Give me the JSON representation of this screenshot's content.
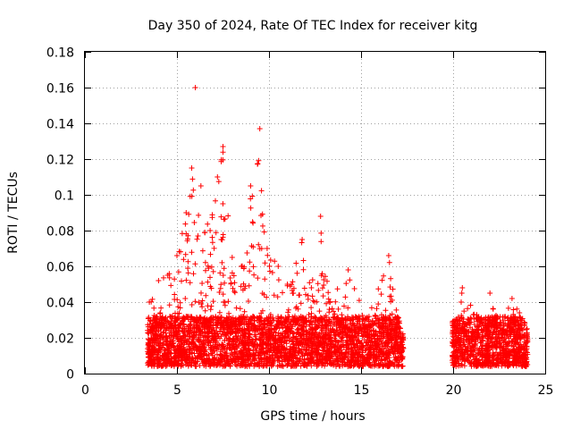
{
  "chart_data": {
    "type": "scatter",
    "title": "Day 350 of 2024, Rate Of TEC Index for receiver kitg",
    "xlabel": "GPS time / hours",
    "ylabel": "ROTI / TECUs",
    "xlim": [
      0,
      25
    ],
    "ylim": [
      0,
      0.18
    ],
    "xticks": [
      "0",
      "5",
      "10",
      "15",
      "20",
      "25"
    ],
    "yticks": [
      "0",
      "0.02",
      "0.04",
      "0.06",
      "0.08",
      "0.1",
      "0.12",
      "0.14",
      "0.16",
      "0.18"
    ],
    "grid": true,
    "marker": "+",
    "color": "#ff0000",
    "series": [
      {
        "name": "ROTI",
        "envelope": [
          {
            "x": 3.5,
            "y": 0.04
          },
          {
            "x": 4.0,
            "y": 0.052
          },
          {
            "x": 4.5,
            "y": 0.055
          },
          {
            "x": 5.0,
            "y": 0.066
          },
          {
            "x": 5.5,
            "y": 0.09
          },
          {
            "x": 5.8,
            "y": 0.115
          },
          {
            "x": 6.0,
            "y": 0.16
          },
          {
            "x": 6.3,
            "y": 0.105
          },
          {
            "x": 6.8,
            "y": 0.08
          },
          {
            "x": 7.2,
            "y": 0.11
          },
          {
            "x": 7.5,
            "y": 0.127
          },
          {
            "x": 8.0,
            "y": 0.065
          },
          {
            "x": 8.5,
            "y": 0.06
          },
          {
            "x": 9.0,
            "y": 0.105
          },
          {
            "x": 9.5,
            "y": 0.137
          },
          {
            "x": 9.9,
            "y": 0.07
          },
          {
            "x": 10.5,
            "y": 0.06
          },
          {
            "x": 11.0,
            "y": 0.05
          },
          {
            "x": 11.8,
            "y": 0.075
          },
          {
            "x": 12.3,
            "y": 0.048
          },
          {
            "x": 12.8,
            "y": 0.088
          },
          {
            "x": 13.3,
            "y": 0.04
          },
          {
            "x": 14.3,
            "y": 0.058
          },
          {
            "x": 15.3,
            "y": 0.03
          },
          {
            "x": 16.5,
            "y": 0.066
          },
          {
            "x": 17.2,
            "y": 0.018
          },
          {
            "x": 20.1,
            "y": 0.03
          },
          {
            "x": 20.5,
            "y": 0.048
          },
          {
            "x": 21.5,
            "y": 0.03
          },
          {
            "x": 22.0,
            "y": 0.045
          },
          {
            "x": 22.6,
            "y": 0.028
          },
          {
            "x": 23.2,
            "y": 0.042
          },
          {
            "x": 23.6,
            "y": 0.034
          },
          {
            "x": 24.0,
            "y": 0.022
          }
        ],
        "segments": [
          [
            3.4,
            17.3
          ],
          [
            19.95,
            24.05
          ]
        ]
      }
    ]
  }
}
